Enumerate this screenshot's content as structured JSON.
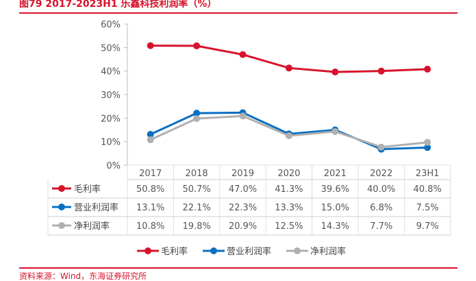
{
  "title": "图79  2017-2023H1 乐鑫科技利润率（%）",
  "source": "资料来源：Wind，东海证券研究所",
  "chart_data": {
    "type": "line",
    "categories": [
      "2017",
      "2018",
      "2019",
      "2020",
      "2021",
      "2022",
      "23H1"
    ],
    "ylim": [
      0,
      60
    ],
    "yticks": [
      "0%",
      "10%",
      "20%",
      "30%",
      "40%",
      "50%",
      "60%"
    ],
    "grid": false,
    "legend_placement": "bottom",
    "series": [
      {
        "name": "毛利率",
        "color": "#d7132c",
        "values": [
          50.8,
          50.7,
          47.0,
          41.3,
          39.6,
          40.0,
          40.8
        ],
        "labels": [
          "50.8%",
          "50.7%",
          "47.0%",
          "41.3%",
          "39.6%",
          "40.0%",
          "40.8%"
        ]
      },
      {
        "name": "营业利润率",
        "color": "#0a6fc2",
        "values": [
          13.1,
          22.1,
          22.3,
          13.3,
          15.0,
          6.8,
          7.5
        ],
        "labels": [
          "13.1%",
          "22.1%",
          "22.3%",
          "13.3%",
          "15.0%",
          "6.8%",
          "7.5%"
        ]
      },
      {
        "name": "净利润率",
        "color": "#b0b0b0",
        "values": [
          10.8,
          19.8,
          20.9,
          12.5,
          14.3,
          7.7,
          9.7
        ],
        "labels": [
          "10.8%",
          "19.8%",
          "20.9%",
          "12.5%",
          "14.3%",
          "7.7%",
          "9.7%"
        ]
      }
    ]
  }
}
